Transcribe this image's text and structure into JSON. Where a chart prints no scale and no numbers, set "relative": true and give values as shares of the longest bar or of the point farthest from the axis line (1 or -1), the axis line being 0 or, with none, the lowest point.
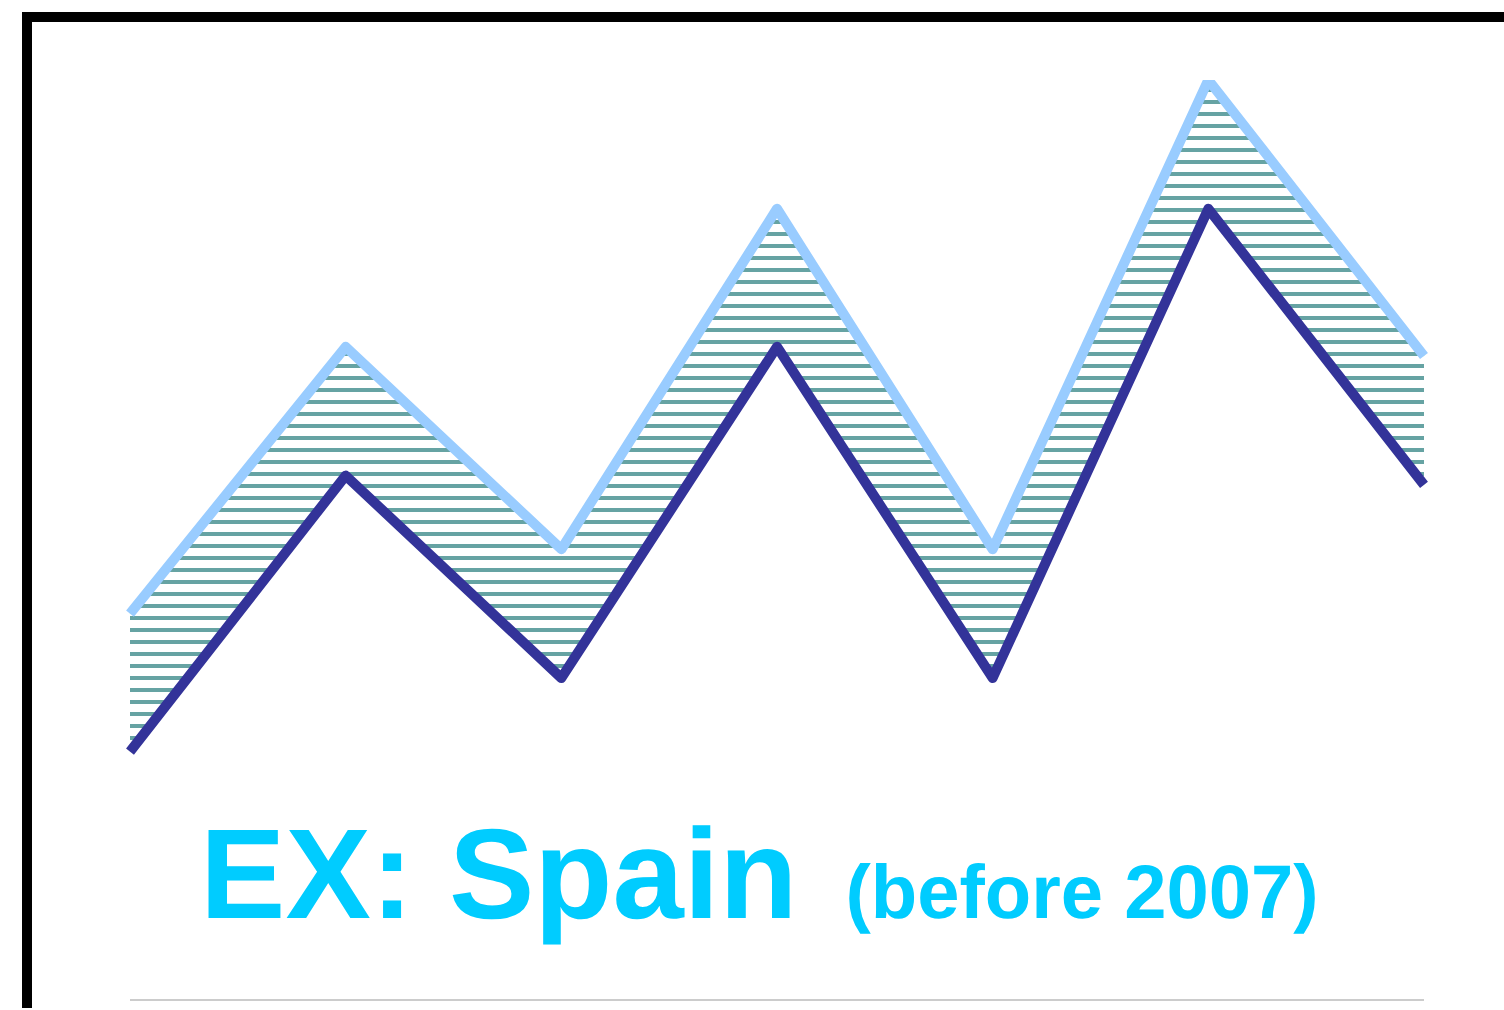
{
  "chart_data": {
    "type": "line",
    "relative": true,
    "categories": [
      null,
      null,
      null,
      null,
      null,
      null,
      null
    ],
    "series": [
      {
        "color": "#99ccff",
        "values": [
          0.42,
          0.71,
          0.49,
          0.86,
          0.49,
          1,
          0.7
        ]
      },
      {
        "color": "#333399",
        "values": [
          0.27,
          0.57,
          0.35,
          0.71,
          0.35,
          0.86,
          0.56
        ],
        "lower": [
          0.27,
          0.57,
          0.35,
          0.71,
          0.35,
          0.86,
          0.56
        ],
        "upper": [
          0.42,
          0.71,
          0.49,
          0.86,
          0.49,
          1,
          0.7
        ]
      }
    ],
    "annotations": [
      "EX: Spain",
      "(before 2007)"
    ],
    "marker": "none",
    "line_style": "solid",
    "grid": false,
    "legend": false
  }
}
